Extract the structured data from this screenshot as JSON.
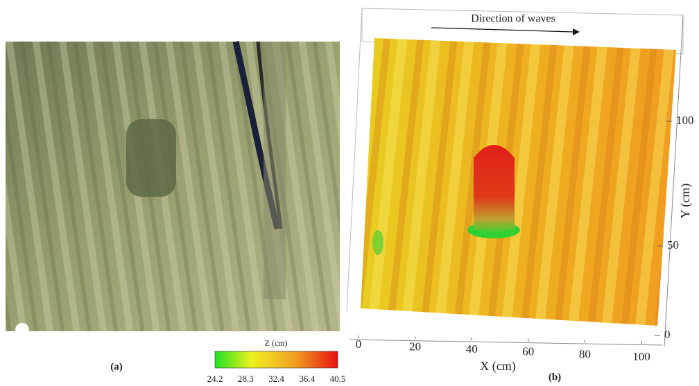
{
  "panel_a": {
    "label": "(a)"
  },
  "colorbar": {
    "title": "Z (cm)",
    "ticks": [
      24.2,
      28.3,
      32.4,
      36.4,
      40.5
    ]
  },
  "panel_b": {
    "label": "(b)",
    "annotation": "Direction of waves",
    "x_axis": {
      "label": "X (cm)",
      "ticks": [
        0,
        20,
        40,
        60,
        80,
        100
      ]
    },
    "y_axis": {
      "label": "Y (cm)",
      "ticks": [
        0,
        50,
        100
      ]
    }
  }
}
